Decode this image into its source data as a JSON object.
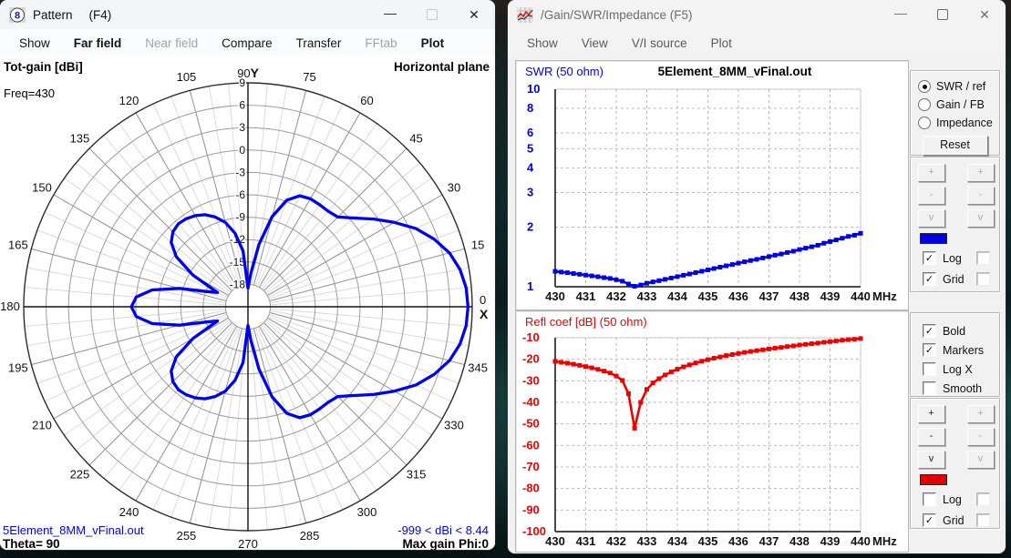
{
  "ui": {
    "minimize_glyph": "—",
    "close_glyph": "✕"
  },
  "pattern_window": {
    "title": "Pattern",
    "title_suffix": "(F4)",
    "menu": [
      {
        "label": "Show",
        "style": "normal"
      },
      {
        "label": "Far field",
        "style": "bold"
      },
      {
        "label": "Near field",
        "style": "disabled"
      },
      {
        "label": "Compare",
        "style": "normal"
      },
      {
        "label": "Transfer",
        "style": "normal"
      },
      {
        "label": "FFtab",
        "style": "disabled"
      },
      {
        "label": "Plot",
        "style": "bold"
      }
    ],
    "header_left": "Tot-gain [dBi]",
    "header_right": "Horizontal plane",
    "freq_label": "Freq=430",
    "footer": {
      "file": "5Element_8MM_vFinal.out",
      "theta": "Theta= 90",
      "range": "-999 < dBi < 8.44",
      "max_gain": "Max gain Phi:0"
    }
  },
  "gain_window": {
    "title": "/Gain/SWR/Impedance (F5)",
    "menu": [
      {
        "label": "Show",
        "style": "normal"
      },
      {
        "label": "View",
        "style": "normal"
      },
      {
        "label": "V/I source",
        "style": "normal"
      },
      {
        "label": "Plot",
        "style": "normal"
      }
    ],
    "panel": {
      "radios": [
        {
          "label": "SWR / ref",
          "selected": true
        },
        {
          "label": "Gain / FB",
          "selected": false
        },
        {
          "label": "Impedance",
          "selected": false
        }
      ],
      "reset_label": "Reset",
      "zoom_button_labels": [
        "+",
        "-",
        "v"
      ],
      "swatch_top_color": "#0000e0",
      "swatch_bottom_color": "#e00000",
      "top_checks": [
        {
          "label": "Log",
          "checked": true
        },
        {
          "label": "Grid",
          "checked": true
        }
      ],
      "display_checks": [
        {
          "label": "Bold",
          "checked": true
        },
        {
          "label": "Markers",
          "checked": true
        },
        {
          "label": "Log X",
          "checked": false
        },
        {
          "label": "Smooth",
          "checked": false
        }
      ],
      "bottom_checks": [
        {
          "label": "Log",
          "checked": false
        },
        {
          "label": "Grid",
          "checked": true
        }
      ]
    }
  },
  "chart_data": [
    {
      "type": "polar-line",
      "name": "radiation-pattern",
      "title": "Tot-gain [dBi]",
      "plane": "Horizontal plane",
      "frequency_mhz": 430,
      "file": "5Element_8MM_vFinal.out",
      "theta_deg": 90,
      "max_gain_dbi": 8.44,
      "max_gain_phi_deg": 0,
      "gain_floor_dbi": -999,
      "ring_labels_dbi": [
        9,
        6,
        3,
        0,
        -3,
        -6,
        -9,
        -12,
        -15,
        -18
      ],
      "center_dbi": -21,
      "angle_label_step_deg": 15,
      "axis_top_marker": "Y",
      "axis_right_marker": "X",
      "azimuth_start_deg": 0,
      "azimuth_step_deg": 5,
      "gain_dbi": [
        8.44,
        8.3,
        7.8,
        6.9,
        5.5,
        3.8,
        1.6,
        -0.5,
        -2.5,
        -4.0,
        -4.3,
        -4.3,
        -4.3,
        -4.6,
        -5.8,
        -8.5,
        -12.5,
        -16.5,
        -18.5,
        -13.5,
        -11.0,
        -9.3,
        -8.2,
        -7.4,
        -6.9,
        -6.6,
        -6.5,
        -6.8,
        -7.6,
        -9.3,
        -12.5,
        -16.5,
        -15.0,
        -11.5,
        -8.0,
        -6.0,
        -5.4,
        -6.0,
        -8.0,
        -11.5,
        -15.0,
        -16.5,
        -12.5,
        -9.3,
        -7.6,
        -6.8,
        -6.5,
        -6.6,
        -6.9,
        -7.4,
        -8.2,
        -9.3,
        -11.0,
        -13.5,
        -18.5,
        -16.5,
        -12.5,
        -8.5,
        -5.8,
        -4.6,
        -4.3,
        -4.3,
        -4.3,
        -4.0,
        -2.5,
        -0.5,
        1.6,
        3.8,
        5.5,
        6.9,
        7.8,
        8.3
      ],
      "color": "#0000f0"
    },
    {
      "type": "line",
      "name": "swr",
      "panel_label": "SWR (50 ohm)",
      "title": "5Element_8MM_vFinal.out",
      "yscale": "log",
      "ylim": [
        1,
        10
      ],
      "yticks": [
        10,
        8,
        6,
        5,
        4,
        3,
        2,
        1
      ],
      "xlim": [
        430,
        440
      ],
      "xticks": [
        430,
        431,
        432,
        433,
        434,
        435,
        436,
        437,
        438,
        439,
        440
      ],
      "x_unit": "MHz",
      "x_start_mhz": 430,
      "x_step_mhz": 0.2,
      "values": [
        1.196,
        1.186,
        1.177,
        1.166,
        1.156,
        1.145,
        1.135,
        1.124,
        1.112,
        1.101,
        1.085,
        1.067,
        1.032,
        1.005,
        1.02,
        1.041,
        1.058,
        1.074,
        1.09,
        1.107,
        1.125,
        1.143,
        1.16,
        1.179,
        1.198,
        1.217,
        1.237,
        1.256,
        1.277,
        1.296,
        1.316,
        1.338,
        1.357,
        1.377,
        1.398,
        1.421,
        1.445,
        1.464,
        1.491,
        1.513,
        1.544,
        1.568,
        1.594,
        1.622,
        1.66,
        1.692,
        1.725,
        1.76,
        1.798,
        1.824,
        1.865
      ],
      "color": "#0000e6",
      "grid": true,
      "markers": true
    },
    {
      "type": "line",
      "name": "refl-coef",
      "panel_label": "Refl coef [dB] (50 ohm)",
      "title": "",
      "yscale": "linear",
      "ylim": [
        -100,
        -10
      ],
      "yticks": [
        -10,
        -20,
        -30,
        -40,
        -50,
        -60,
        -70,
        -80,
        -90,
        -100
      ],
      "xlim": [
        430,
        440
      ],
      "xticks": [
        430,
        431,
        432,
        433,
        434,
        435,
        436,
        437,
        438,
        439,
        440
      ],
      "x_unit": "MHz",
      "x_start_mhz": 430,
      "x_step_mhz": 0.2,
      "values": [
        -21.0,
        -21.4,
        -21.8,
        -22.3,
        -22.8,
        -23.4,
        -24.0,
        -24.7,
        -25.5,
        -26.4,
        -27.8,
        -29.8,
        -36.0,
        -52.0,
        -40.0,
        -34.0,
        -31.0,
        -29.0,
        -27.3,
        -25.9,
        -24.6,
        -23.5,
        -22.6,
        -21.7,
        -20.9,
        -20.2,
        -19.5,
        -18.9,
        -18.3,
        -17.8,
        -17.3,
        -16.8,
        -16.4,
        -16.0,
        -15.6,
        -15.2,
        -14.8,
        -14.5,
        -14.1,
        -13.8,
        -13.4,
        -13.1,
        -12.8,
        -12.5,
        -12.1,
        -11.8,
        -11.5,
        -11.2,
        -10.9,
        -10.7,
        -10.4
      ],
      "color": "#ee0000",
      "grid": true,
      "markers": true
    }
  ]
}
